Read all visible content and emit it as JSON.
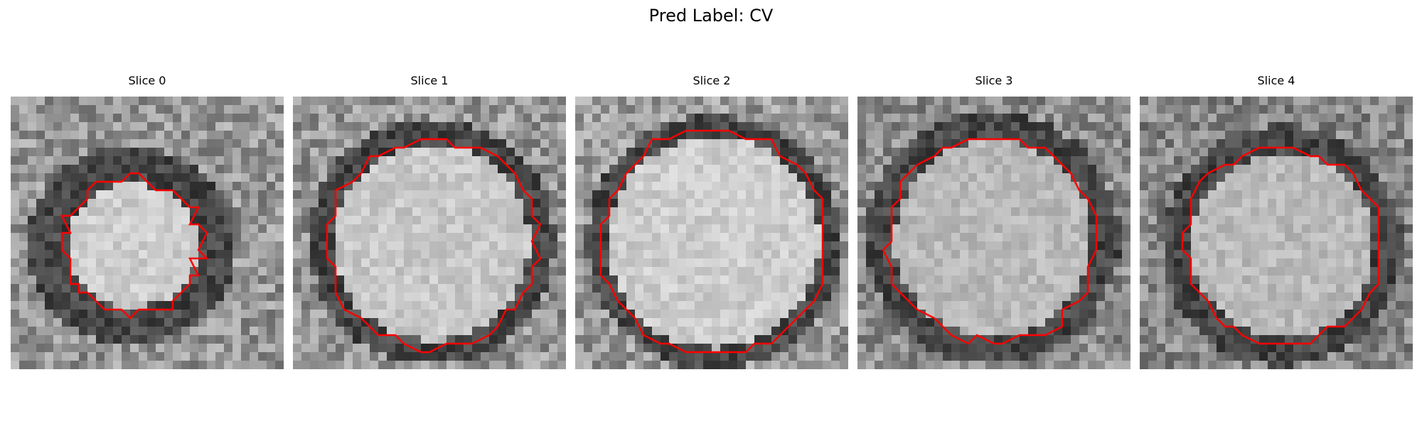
{
  "title": "Pred Label: CV",
  "contour_color": "#ff0000",
  "colormap": "gray",
  "panels": [
    {
      "title": "Slice 0"
    },
    {
      "title": "Slice 1"
    },
    {
      "title": "Slice 2"
    },
    {
      "title": "Slice 3"
    },
    {
      "title": "Slice 4"
    }
  ]
}
